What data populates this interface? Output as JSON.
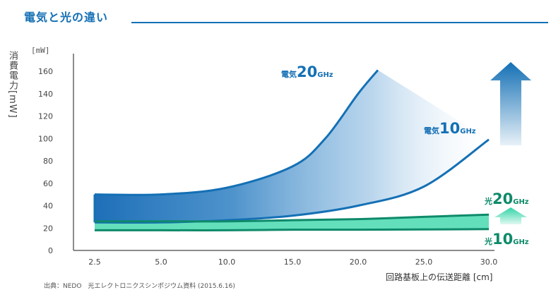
{
  "header": {
    "title": "電気と光の違い"
  },
  "source_note": "出典：NEDO　光エレクトロニクスシンポジウム資料 (2015.6.16)",
  "colors": {
    "electric": "#1470b5",
    "optical": "#0e8a6a",
    "optical_fill": "#30d4a6",
    "arrow_blue": "#1470b5",
    "arrow_green": "#5bd9b5"
  },
  "chart_data": {
    "type": "area",
    "ylabel": "消費電力[mW]",
    "yunit": "[mW]",
    "xlabel": "回路基板上の伝送距離 [cm]",
    "xlim": [
      2.5,
      30.0
    ],
    "ylim": [
      0,
      160
    ],
    "x_ticks": [
      "2.5",
      "5.0",
      "10.0",
      "15.0",
      "20.0",
      "25.0",
      "30.0"
    ],
    "y_ticks": [
      "0",
      "20",
      "40",
      "60",
      "80",
      "100",
      "120",
      "140",
      "160"
    ],
    "series": [
      {
        "name": "電気20GHz",
        "label_prefix": "電気",
        "label_num": "20",
        "label_unit": "GHz",
        "x": [
          2.5,
          5.0,
          10.0,
          15.0,
          17.5,
          20.0,
          21.5
        ],
        "y": [
          50,
          50,
          56,
          75,
          100,
          140,
          161
        ]
      },
      {
        "name": "電気10GHz",
        "label_prefix": "電気",
        "label_num": "10",
        "label_unit": "GHz",
        "x": [
          2.5,
          5.0,
          10.0,
          15.0,
          20.0,
          25.0,
          30.0
        ],
        "y": [
          25,
          25,
          27,
          31,
          40,
          57,
          99
        ]
      },
      {
        "name": "光20GHz",
        "label_prefix": "光",
        "label_num": "20",
        "label_unit": "GHz",
        "x": [
          2.5,
          5.0,
          10.0,
          15.0,
          20.0,
          25.0,
          30.0
        ],
        "y": [
          26,
          26,
          26,
          27,
          28,
          30,
          32
        ]
      },
      {
        "name": "光10GHz",
        "label_prefix": "光",
        "label_num": "10",
        "label_unit": "GHz",
        "x": [
          2.5,
          5.0,
          10.0,
          15.0,
          20.0,
          25.0,
          30.0
        ],
        "y": [
          18,
          18,
          18,
          18.5,
          18.5,
          18.7,
          19
        ]
      }
    ]
  }
}
